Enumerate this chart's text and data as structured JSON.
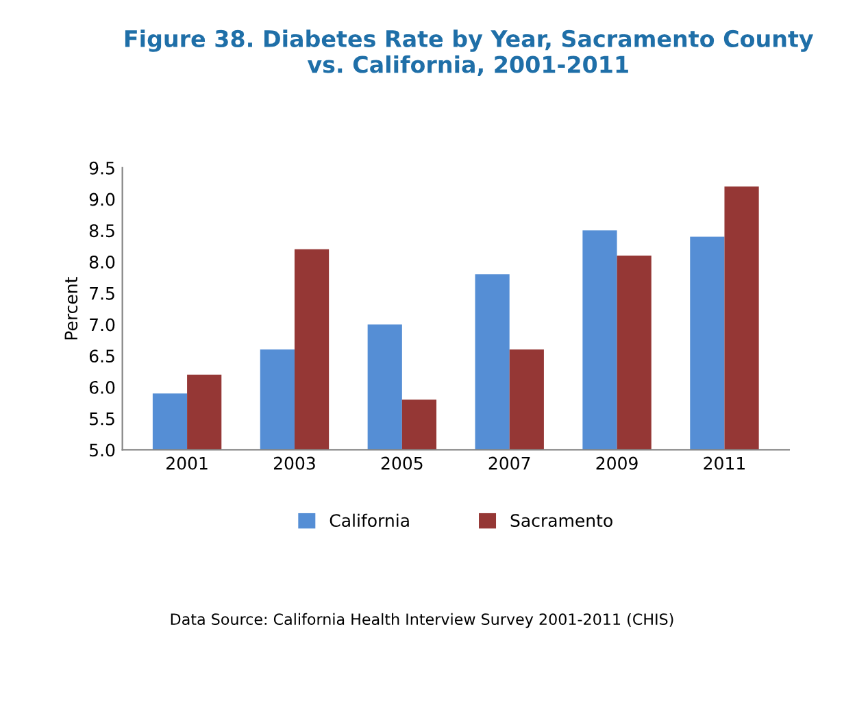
{
  "chart_data": {
    "type": "bar",
    "title": "Figure 38. Diabetes Rate by Year, Sacramento County\nvs. California, 2001-2011",
    "ylabel": "Percent",
    "categories": [
      "2001",
      "2003",
      "2005",
      "2007",
      "2009",
      "2011"
    ],
    "series": [
      {
        "name": "California",
        "color": "#558ed5",
        "values": [
          5.9,
          6.6,
          7.0,
          7.8,
          8.5,
          8.4
        ]
      },
      {
        "name": "Sacramento",
        "color": "#953735",
        "values": [
          6.2,
          8.2,
          5.8,
          6.6,
          8.1,
          9.2
        ]
      }
    ],
    "ylim": [
      5.0,
      9.5
    ],
    "yticks": [
      {
        "value": 5.0,
        "label": "5.0"
      },
      {
        "value": 5.5,
        "label": "5.5"
      },
      {
        "value": 6.0,
        "label": "6.0"
      },
      {
        "value": 6.5,
        "label": "6.5"
      },
      {
        "value": 7.0,
        "label": "7.0"
      },
      {
        "value": 7.5,
        "label": "7.5"
      },
      {
        "value": 8.0,
        "label": "8.0"
      },
      {
        "value": 8.5,
        "label": "8.5"
      },
      {
        "value": 9.0,
        "label": "9.0"
      },
      {
        "value": 9.5,
        "label": "9.5"
      }
    ],
    "grid": false,
    "legend": "bottom",
    "annotations": [
      "Data Source: California Health Interview Survey 2001-2011 (CHIS)"
    ]
  }
}
